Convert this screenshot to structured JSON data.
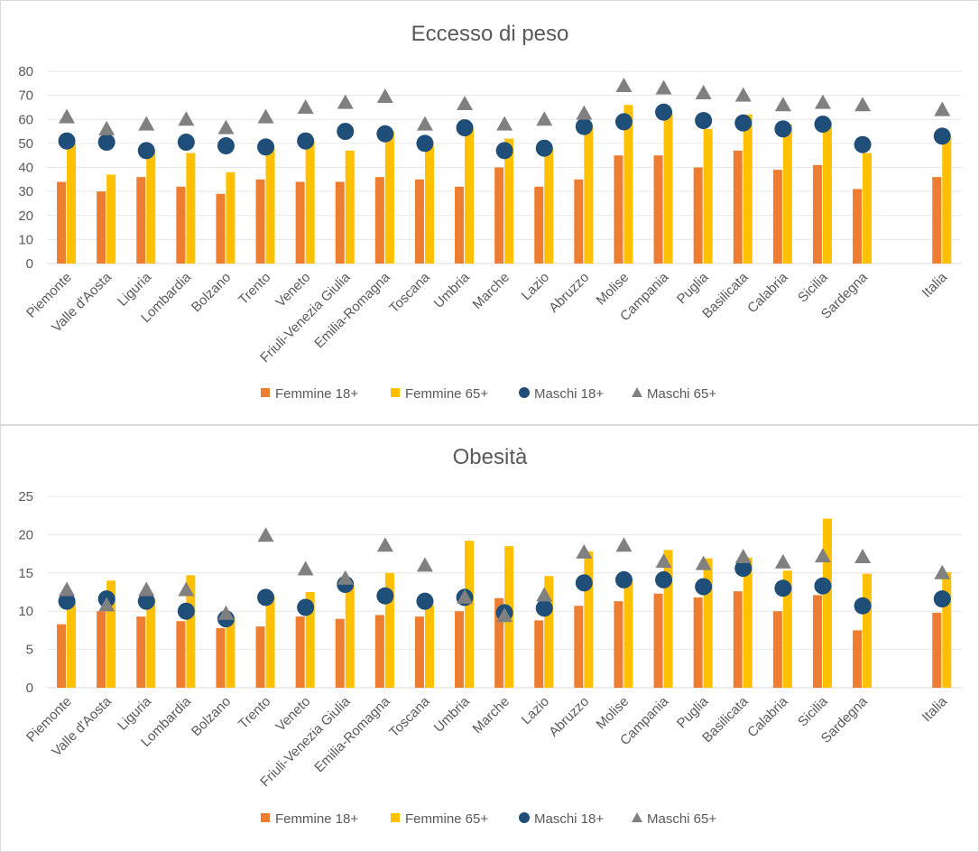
{
  "colors": {
    "femmine18": "#ED7D31",
    "femmine65": "#FFC000",
    "maschi18": "#1F4E79",
    "maschi65": "#808080",
    "text": "#595959"
  },
  "chart_data": [
    {
      "type": "bar",
      "title": "Eccesso di peso",
      "xlabel": "",
      "ylabel": "",
      "ylim": [
        0,
        80
      ],
      "yticks": [
        "0",
        "10",
        "20",
        "30",
        "40",
        "50",
        "60",
        "70",
        "80"
      ],
      "categories": [
        "Piemonte",
        "Valle d'Aosta",
        "Liguria",
        "Lombardia",
        "Bolzano",
        "Trento",
        "Veneto",
        "Friuli-Venezia Giulia",
        "Emilia-Romagna",
        "Toscana",
        "Umbria",
        "Marche",
        "Lazio",
        "Abruzzo",
        "Molise",
        "Campania",
        "Puglia",
        "Basilicata",
        "Calabria",
        "Sicilia",
        "Sardegna",
        "",
        "Italia"
      ],
      "series": [
        {
          "name": "Femmine 18+",
          "mark": "bar",
          "values": [
            34,
            30,
            36,
            32,
            29,
            35,
            34,
            34,
            36,
            35,
            32,
            40,
            32,
            35,
            45,
            45,
            40,
            47,
            39,
            41,
            31,
            null,
            36
          ]
        },
        {
          "name": "Femmine 65+",
          "mark": "bar",
          "values": [
            50,
            37,
            47,
            46,
            38,
            48,
            51,
            47,
            55,
            49,
            56,
            52,
            48,
            58,
            66,
            63,
            56,
            62,
            58,
            59,
            46,
            null,
            53
          ]
        },
        {
          "name": "Maschi 18+",
          "mark": "circle",
          "values": [
            51,
            50.5,
            47,
            50.5,
            49,
            48.5,
            51,
            55,
            54,
            50,
            56.5,
            47,
            48,
            57,
            59,
            63,
            59.5,
            58.5,
            56,
            58,
            49.5,
            null,
            53
          ]
        },
        {
          "name": "Maschi 65+",
          "mark": "triangle",
          "values": [
            61,
            56,
            58,
            60,
            56.5,
            61,
            65,
            67,
            69.5,
            58,
            66.5,
            58,
            60,
            62.5,
            74,
            73,
            71,
            70,
            66,
            67,
            66,
            null,
            64
          ]
        }
      ],
      "legend": [
        "Femmine 18+",
        "Femmine 65+",
        "Maschi 18+",
        "Maschi 65+"
      ],
      "legend_position": "bottom"
    },
    {
      "type": "bar",
      "title": "Obesità",
      "xlabel": "",
      "ylabel": "",
      "ylim": [
        0,
        25
      ],
      "yticks": [
        "0",
        "5",
        "10",
        "15",
        "20",
        "25"
      ],
      "categories": [
        "Piemonte",
        "Valle d'Aosta",
        "Liguria",
        "Lombardia",
        "Bolzano",
        "Trento",
        "Veneto",
        "Friuli-Venezia Giulia",
        "Emilia-Romagna",
        "Toscana",
        "Umbria",
        "Marche",
        "Lazio",
        "Abruzzo",
        "Molise",
        "Campania",
        "Puglia",
        "Basilicata",
        "Calabria",
        "Sicilia",
        "Sardegna",
        "",
        "Italia"
      ],
      "series": [
        {
          "name": "Femmine 18+",
          "mark": "bar",
          "values": [
            8.3,
            10,
            9.3,
            8.7,
            7.8,
            8,
            9.3,
            9,
            9.5,
            9.3,
            10,
            11.7,
            8.8,
            10.7,
            11.3,
            12.3,
            11.8,
            12.6,
            10,
            12.1,
            7.5,
            null,
            9.8
          ]
        },
        {
          "name": "Femmine 65+",
          "mark": "bar",
          "values": [
            11.3,
            14,
            11.7,
            14.7,
            9,
            11.9,
            12.5,
            13.3,
            15,
            10.8,
            19.2,
            18.5,
            14.6,
            17.8,
            14.1,
            18,
            16.9,
            17,
            15.3,
            22.1,
            14.9,
            null,
            15.1
          ]
        },
        {
          "name": "Maschi 18+",
          "mark": "circle",
          "values": [
            11.3,
            11.6,
            11.3,
            10,
            9,
            11.8,
            10.5,
            13.5,
            12,
            11.3,
            11.8,
            9.8,
            10.4,
            13.7,
            14.1,
            14.1,
            13.2,
            15.6,
            13,
            13.3,
            10.7,
            null,
            11.6
          ]
        },
        {
          "name": "Maschi 65+",
          "mark": "triangle",
          "values": [
            12.8,
            10.8,
            12.8,
            12.8,
            9.7,
            19.9,
            15.5,
            14.3,
            18.6,
            16,
            11.8,
            9.4,
            12.1,
            17.7,
            18.6,
            16.5,
            16.2,
            17.1,
            16.4,
            17.2,
            17.1,
            null,
            15
          ]
        }
      ],
      "legend": [
        "Femmine 18+",
        "Femmine 65+",
        "Maschi 18+",
        "Maschi 65+"
      ],
      "legend_position": "bottom"
    }
  ]
}
